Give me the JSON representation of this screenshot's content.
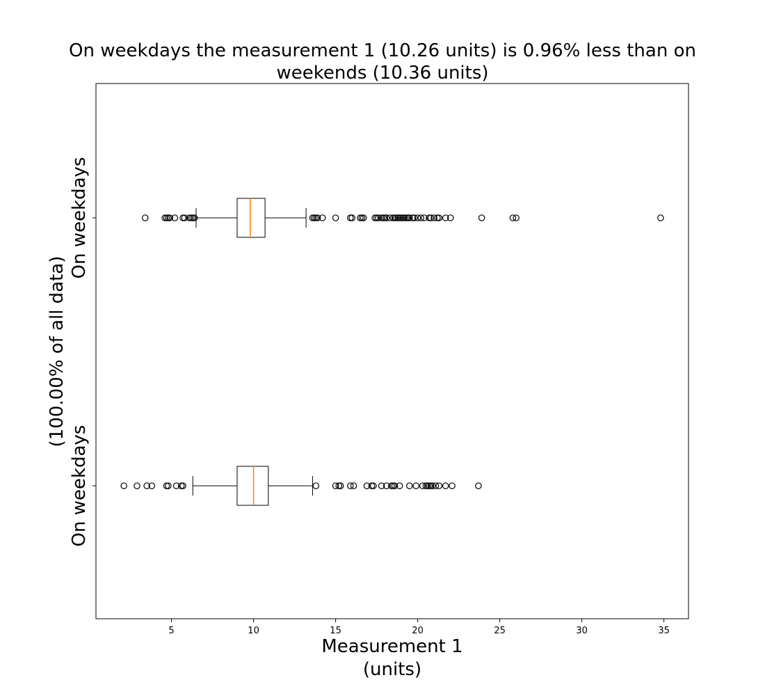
{
  "chart_data": {
    "type": "boxplot",
    "orientation": "horizontal",
    "title": "On weekdays the measurement 1 (10.26 units) is 0.96% less than on weekends (10.36 units)",
    "title_lines": [
      "On weekdays the measurement 1 (10.26 units) is 0.96% less than on",
      "weekends (10.36 units)"
    ],
    "xlabel": "Measurement 1 (units)",
    "xlabel_lines": [
      "Measurement 1",
      "(units)"
    ],
    "ylabel": "(100.00% of all data)",
    "xlim": [
      0.4,
      36.5
    ],
    "x_ticks": [
      5,
      10,
      15,
      20,
      25,
      30,
      35
    ],
    "grid": false,
    "colors": {
      "box": "#000000",
      "median": "#ff7f0e",
      "flier": "#000000"
    },
    "series": [
      {
        "name": "On weekdays",
        "whisker_low": 6.3,
        "q1": 9.0,
        "median": 10.0,
        "q3": 10.9,
        "whisker_high": 13.6,
        "fliers": [
          2.1,
          2.9,
          3.5,
          3.8,
          4.7,
          4.8,
          5.3,
          5.6,
          5.7,
          13.8,
          15.0,
          15.2,
          15.3,
          15.9,
          16.1,
          16.9,
          17.2,
          17.3,
          17.8,
          18.1,
          18.4,
          18.5,
          18.6,
          18.9,
          19.5,
          19.9,
          20.3,
          20.5,
          20.6,
          20.7,
          20.8,
          20.9,
          21.1,
          21.3,
          21.7,
          22.1,
          23.7
        ]
      },
      {
        "name": "On weekdays",
        "whisker_low": 6.5,
        "q1": 9.0,
        "median": 9.8,
        "q3": 10.7,
        "whisker_high": 13.2,
        "fliers": [
          3.4,
          4.6,
          4.7,
          4.8,
          4.9,
          5.2,
          5.7,
          5.8,
          6.1,
          6.2,
          6.3,
          6.4,
          13.6,
          13.7,
          13.8,
          13.9,
          14.2,
          15.0,
          15.9,
          16.0,
          16.5,
          16.6,
          16.7,
          17.4,
          17.5,
          17.6,
          17.8,
          17.9,
          18.0,
          18.1,
          18.3,
          18.5,
          18.6,
          18.7,
          18.8,
          18.9,
          19.0,
          19.1,
          19.2,
          19.3,
          19.4,
          19.5,
          19.7,
          19.8,
          20.0,
          20.2,
          20.4,
          20.7,
          20.8,
          21.0,
          21.2,
          21.3,
          21.7,
          22.0,
          23.9,
          25.8,
          26.0,
          34.8
        ]
      }
    ]
  }
}
